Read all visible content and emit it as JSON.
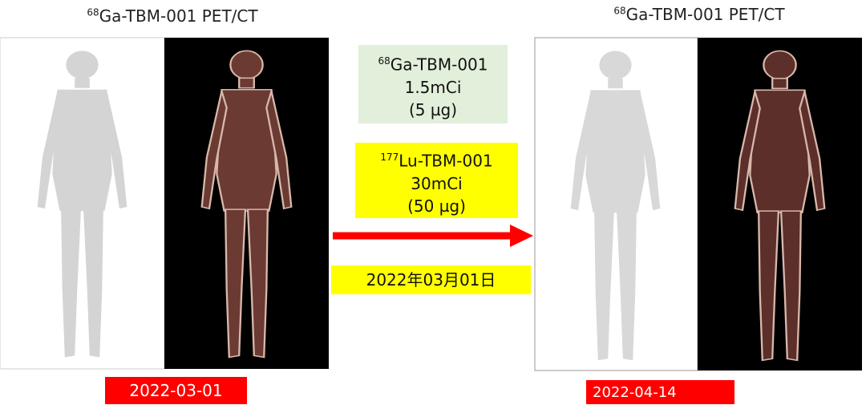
{
  "left_panel": {
    "title": {
      "superscript": "68",
      "text": "Ga-TBM-001  PET/CT"
    },
    "date": "2022-03-01"
  },
  "right_panel": {
    "title": {
      "superscript": "68",
      "text": "Ga-TBM-001  PET/CT"
    },
    "date": "2022-04-14"
  },
  "doses": [
    {
      "superscript": "68",
      "name": "Ga-TBM-001",
      "activity": "1.5mCi",
      "mass": "(5 µg)"
    },
    {
      "superscript": "177",
      "name": "Lu-TBM-001",
      "activity": "30mCi",
      "mass": "(50 µg)"
    }
  ],
  "treatment_date": "2022年03月01日"
}
